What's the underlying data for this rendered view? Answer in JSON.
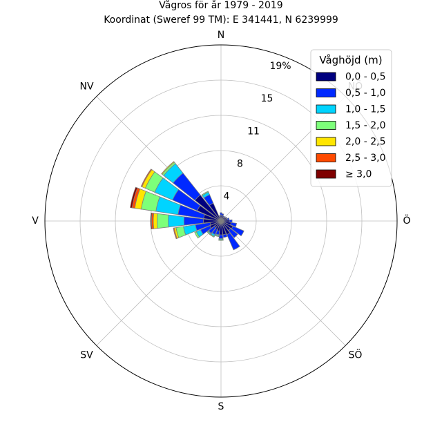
{
  "chart_data": {
    "type": "windrose",
    "title": "Vågros för år 1979 - 2019",
    "subtitle": "Koordinat (Sweref 99 TM): E 341441, N 6239999",
    "direction_labels": [
      "N",
      "NÖ",
      "Ö",
      "SÖ",
      "S",
      "SV",
      "V",
      "NV"
    ],
    "radial_ticks": [
      "4",
      "8",
      "11",
      "15",
      "19%"
    ],
    "radial_tick_values": [
      3.8,
      7.6,
      11.4,
      15.2,
      19.0
    ],
    "r_max": 19.0,
    "grid": true,
    "legend": {
      "title": "Våghöjd (m)",
      "placement": "top-right",
      "entries": [
        {
          "label": "0,0 - 0,5",
          "color": "#00007f"
        },
        {
          "label": "0,5 - 1,0",
          "color": "#0029ff"
        },
        {
          "label": "1,0 - 1,5",
          "color": "#00d4ff"
        },
        {
          "label": "1,5 - 2,0",
          "color": "#7dff7a"
        },
        {
          "label": "2,0 - 2,5",
          "color": "#ffe500"
        },
        {
          "label": "2,5 - 3,0",
          "color": "#ff4a00"
        },
        {
          "label": "≥ 3,0",
          "color": "#7f0000"
        }
      ]
    },
    "sector_width_deg": 15,
    "directions_deg": [
      0,
      15,
      30,
      45,
      60,
      75,
      90,
      105,
      120,
      135,
      150,
      165,
      180,
      195,
      210,
      225,
      240,
      255,
      270,
      285,
      300,
      315,
      330,
      345
    ],
    "series": [
      {
        "name": "0,0 - 0,5",
        "values": [
          0.6,
          0.6,
          0.5,
          0.5,
          0.6,
          0.7,
          0.9,
          1.1,
          1.4,
          1.3,
          1.6,
          1.5,
          1.5,
          1.1,
          1.0,
          0.9,
          1.3,
          1.2,
          1.9,
          1.9,
          2.8,
          3.6,
          2.1,
          0.5
        ]
      },
      {
        "name": "0,5 - 1,0",
        "values": [
          0.3,
          0.2,
          0.1,
          0.1,
          0.1,
          0.2,
          0.3,
          0.6,
          1.3,
          1.0,
          1.8,
          0.3,
          0.4,
          0.4,
          0.6,
          0.8,
          1.1,
          1.6,
          2.1,
          2.8,
          2.9,
          3.0,
          1.0,
          0.1
        ]
      },
      {
        "name": "1,0 - 1,5",
        "values": [
          0,
          0,
          0,
          0,
          0,
          0,
          0,
          0,
          0,
          0,
          0,
          0,
          0.1,
          0.1,
          0.2,
          0.1,
          0.5,
          1.3,
          1.7,
          2.4,
          2.1,
          1.3,
          0.3,
          0
        ]
      },
      {
        "name": "1,5 - 2,0",
        "values": [
          0,
          0,
          0,
          0,
          0,
          0,
          0,
          0,
          0,
          0,
          0,
          0,
          0.1,
          0.1,
          0.1,
          0.1,
          0.2,
          0.8,
          1.2,
          1.6,
          1.1,
          0.2,
          0.1,
          0
        ]
      },
      {
        "name": "2,0 - 2,5",
        "values": [
          0,
          0,
          0,
          0,
          0,
          0,
          0,
          0,
          0,
          0,
          0,
          0,
          0,
          0,
          0,
          0,
          0,
          0.2,
          0.4,
          0.7,
          0.4,
          0.1,
          0,
          0
        ]
      },
      {
        "name": "2,5 - 3,0",
        "values": [
          0,
          0,
          0,
          0,
          0,
          0,
          0,
          0,
          0,
          0,
          0,
          0,
          0,
          0,
          0,
          0,
          0,
          0.1,
          0.2,
          0.3,
          0.1,
          0,
          0,
          0
        ]
      },
      {
        "name": "≥ 3,0",
        "values": [
          0,
          0,
          0,
          0,
          0,
          0,
          0,
          0,
          0,
          0,
          0,
          0,
          0,
          0,
          0,
          0,
          0,
          0,
          0.1,
          0.2,
          0,
          0,
          0,
          0
        ]
      }
    ]
  }
}
